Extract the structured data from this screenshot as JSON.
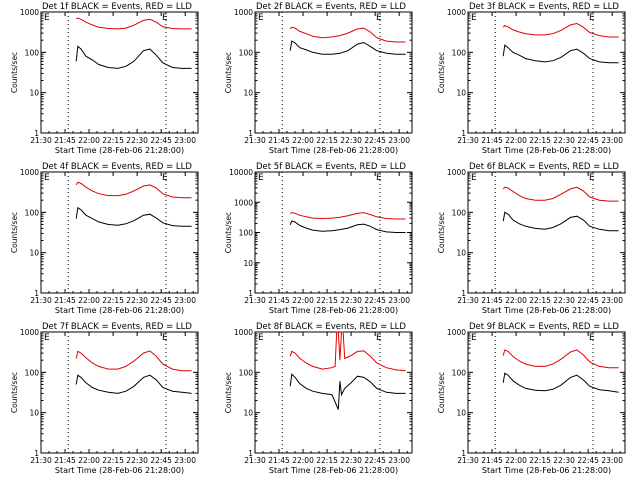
{
  "figure": {
    "start_time_label": "Start Time (28-Feb-06 21:28:00)",
    "y_axis_label": "Counts/sec",
    "event_marker_text": "E",
    "colors": {
      "events": "#000000",
      "lld": "#e00000",
      "axes": "#000000",
      "background": "#ffffff"
    }
  },
  "chart_data": [
    {
      "type": "line",
      "title": "Det 1f BLACK = Events, RED = LLD",
      "x_ticks": [
        "21:30",
        "21:45",
        "22:00",
        "22:15",
        "22:30",
        "22:45",
        "23:00"
      ],
      "y_ticks": [
        "1",
        "10",
        "100",
        "1000"
      ],
      "yscale": "log",
      "ylim": [
        1,
        1000
      ],
      "xlim": [
        "21:30",
        "23:08"
      ],
      "event_lines": [
        "21:47",
        "22:48"
      ],
      "series": [
        {
          "name": "Events",
          "color": "#000000",
          "x": [
            "21:52",
            "21:53",
            "21:55",
            "21:58",
            "22:02",
            "22:06",
            "22:12",
            "22:18",
            "22:23",
            "22:28",
            "22:34",
            "22:38",
            "22:42",
            "22:46",
            "22:52",
            "22:58",
            "23:04"
          ],
          "y": [
            60,
            140,
            120,
            80,
            65,
            50,
            42,
            40,
            45,
            60,
            110,
            120,
            85,
            55,
            42,
            40,
            40
          ]
        },
        {
          "name": "LLD",
          "color": "#e00000",
          "x": [
            "21:52",
            "21:53",
            "21:55",
            "21:58",
            "22:02",
            "22:06",
            "22:12",
            "22:18",
            "22:23",
            "22:28",
            "22:34",
            "22:38",
            "22:42",
            "22:46",
            "22:52",
            "22:58",
            "23:04"
          ],
          "y": [
            680,
            700,
            660,
            560,
            480,
            420,
            390,
            380,
            400,
            470,
            620,
            660,
            560,
            430,
            390,
            380,
            380
          ]
        }
      ]
    },
    {
      "type": "line",
      "title": "Det 2f BLACK = Events, RED = LLD",
      "x_ticks": [
        "21:30",
        "21:45",
        "22:00",
        "22:15",
        "22:30",
        "22:45",
        "23:00"
      ],
      "y_ticks": [
        "1",
        "10",
        "100",
        "1000"
      ],
      "yscale": "log",
      "ylim": [
        1,
        1000
      ],
      "xlim": [
        "21:30",
        "23:08"
      ],
      "event_lines": [
        "21:47",
        "22:48"
      ],
      "series": [
        {
          "name": "Events",
          "color": "#000000",
          "x": [
            "21:52",
            "21:53",
            "21:55",
            "21:58",
            "22:02",
            "22:06",
            "22:12",
            "22:18",
            "22:23",
            "22:28",
            "22:34",
            "22:38",
            "22:42",
            "22:46",
            "22:52",
            "22:58",
            "23:04"
          ],
          "y": [
            110,
            190,
            170,
            130,
            115,
            100,
            90,
            90,
            95,
            110,
            160,
            175,
            140,
            110,
            95,
            90,
            90
          ]
        },
        {
          "name": "LLD",
          "color": "#e00000",
          "x": [
            "21:52",
            "21:53",
            "21:55",
            "21:58",
            "22:02",
            "22:06",
            "22:12",
            "22:18",
            "22:23",
            "22:28",
            "22:34",
            "22:38",
            "22:42",
            "22:46",
            "22:52",
            "22:58",
            "23:04"
          ],
          "y": [
            380,
            420,
            400,
            330,
            290,
            250,
            230,
            240,
            260,
            300,
            380,
            400,
            320,
            230,
            190,
            180,
            180
          ]
        }
      ]
    },
    {
      "type": "line",
      "title": "Det 3f BLACK = Events, RED = LLD",
      "x_ticks": [
        "21:30",
        "21:45",
        "22:00",
        "22:15",
        "22:30",
        "22:45",
        "23:00"
      ],
      "y_ticks": [
        "1",
        "10",
        "100",
        "1000"
      ],
      "yscale": "log",
      "ylim": [
        1,
        1000
      ],
      "xlim": [
        "21:30",
        "23:08"
      ],
      "event_lines": [
        "21:47",
        "22:48"
      ],
      "series": [
        {
          "name": "Events",
          "color": "#000000",
          "x": [
            "21:52",
            "21:53",
            "21:55",
            "21:58",
            "22:02",
            "22:06",
            "22:12",
            "22:18",
            "22:23",
            "22:28",
            "22:34",
            "22:38",
            "22:42",
            "22:46",
            "22:52",
            "22:58",
            "23:04"
          ],
          "y": [
            80,
            150,
            130,
            100,
            85,
            70,
            62,
            58,
            62,
            75,
            110,
            120,
            95,
            70,
            58,
            55,
            55
          ]
        },
        {
          "name": "LLD",
          "color": "#e00000",
          "x": [
            "21:52",
            "21:53",
            "21:55",
            "21:58",
            "22:02",
            "22:06",
            "22:12",
            "22:18",
            "22:23",
            "22:28",
            "22:34",
            "22:38",
            "22:42",
            "22:46",
            "22:52",
            "22:58",
            "23:04"
          ],
          "y": [
            420,
            460,
            430,
            360,
            320,
            290,
            270,
            270,
            290,
            350,
            480,
            520,
            420,
            310,
            260,
            240,
            240
          ]
        }
      ]
    },
    {
      "type": "line",
      "title": "Det 4f BLACK = Events, RED = LLD",
      "x_ticks": [
        "21:30",
        "21:45",
        "22:00",
        "22:15",
        "22:30",
        "22:45",
        "23:00"
      ],
      "y_ticks": [
        "1",
        "10",
        "100",
        "1000"
      ],
      "yscale": "log",
      "ylim": [
        1,
        1000
      ],
      "xlim": [
        "21:30",
        "23:08"
      ],
      "event_lines": [
        "21:47",
        "22:48"
      ],
      "series": [
        {
          "name": "Events",
          "color": "#000000",
          "x": [
            "21:52",
            "21:53",
            "21:55",
            "21:58",
            "22:02",
            "22:06",
            "22:12",
            "22:18",
            "22:23",
            "22:28",
            "22:34",
            "22:38",
            "22:42",
            "22:46",
            "22:52",
            "22:58",
            "23:04"
          ],
          "y": [
            70,
            130,
            115,
            85,
            70,
            58,
            50,
            48,
            52,
            62,
            85,
            90,
            72,
            55,
            47,
            45,
            45
          ]
        },
        {
          "name": "LLD",
          "color": "#e00000",
          "x": [
            "21:52",
            "21:53",
            "21:55",
            "21:58",
            "22:02",
            "22:06",
            "22:12",
            "22:18",
            "22:23",
            "22:28",
            "22:34",
            "22:38",
            "22:42",
            "22:46",
            "22:52",
            "22:58",
            "23:04"
          ],
          "y": [
            480,
            560,
            520,
            420,
            340,
            290,
            260,
            260,
            280,
            340,
            450,
            480,
            400,
            290,
            240,
            230,
            230
          ]
        }
      ]
    },
    {
      "type": "line",
      "title": "Det 5f BLACK = Events, RED = LLD",
      "x_ticks": [
        "21:30",
        "21:45",
        "22:00",
        "22:15",
        "22:30",
        "22:45",
        "23:00"
      ],
      "y_ticks": [
        "1",
        "10",
        "100",
        "1000",
        "10000"
      ],
      "yscale": "log",
      "ylim": [
        1,
        10000
      ],
      "xlim": [
        "21:30",
        "23:08"
      ],
      "event_lines": [
        "21:47",
        "22:48"
      ],
      "series": [
        {
          "name": "Events",
          "color": "#000000",
          "x": [
            "21:52",
            "21:53",
            "21:55",
            "21:58",
            "22:02",
            "22:06",
            "22:12",
            "22:18",
            "22:23",
            "22:28",
            "22:34",
            "22:38",
            "22:42",
            "22:46",
            "22:52",
            "22:58",
            "23:04"
          ],
          "y": [
            180,
            240,
            220,
            170,
            140,
            120,
            110,
            115,
            125,
            140,
            180,
            190,
            160,
            125,
            105,
            100,
            100
          ]
        },
        {
          "name": "LLD",
          "color": "#e00000",
          "x": [
            "21:52",
            "21:53",
            "21:55",
            "21:58",
            "22:02",
            "22:06",
            "22:12",
            "22:18",
            "22:23",
            "22:28",
            "22:34",
            "22:38",
            "22:42",
            "22:46",
            "22:52",
            "22:58",
            "23:04"
          ],
          "y": [
            420,
            460,
            430,
            370,
            330,
            300,
            290,
            300,
            320,
            360,
            430,
            450,
            390,
            330,
            290,
            280,
            280
          ]
        }
      ]
    },
    {
      "type": "line",
      "title": "Det 6f BLACK = Events, RED = LLD",
      "x_ticks": [
        "21:30",
        "21:45",
        "22:00",
        "22:15",
        "22:30",
        "22:45",
        "23:00"
      ],
      "y_ticks": [
        "1",
        "10",
        "100",
        "1000"
      ],
      "yscale": "log",
      "ylim": [
        1,
        1000
      ],
      "xlim": [
        "21:30",
        "23:08"
      ],
      "event_lines": [
        "21:47",
        "22:48"
      ],
      "series": [
        {
          "name": "Events",
          "color": "#000000",
          "x": [
            "21:52",
            "21:53",
            "21:55",
            "21:58",
            "22:02",
            "22:06",
            "22:12",
            "22:18",
            "22:23",
            "22:28",
            "22:34",
            "22:38",
            "22:42",
            "22:46",
            "22:52",
            "22:58",
            "23:04"
          ],
          "y": [
            60,
            100,
            90,
            65,
            52,
            45,
            40,
            38,
            42,
            52,
            75,
            80,
            65,
            45,
            38,
            35,
            35
          ]
        },
        {
          "name": "LLD",
          "color": "#e00000",
          "x": [
            "21:52",
            "21:53",
            "21:55",
            "21:58",
            "22:02",
            "22:06",
            "22:12",
            "22:18",
            "22:23",
            "22:28",
            "22:34",
            "22:38",
            "22:42",
            "22:46",
            "22:52",
            "22:58",
            "23:04"
          ],
          "y": [
            380,
            420,
            400,
            330,
            260,
            220,
            200,
            200,
            220,
            280,
            380,
            420,
            340,
            240,
            200,
            190,
            190
          ]
        }
      ]
    },
    {
      "type": "line",
      "title": "Det 7f BLACK = Events, RED = LLD",
      "x_ticks": [
        "21:30",
        "21:45",
        "22:00",
        "22:15",
        "22:30",
        "22:45",
        "23:00"
      ],
      "y_ticks": [
        "1",
        "10",
        "100",
        "1000"
      ],
      "yscale": "log",
      "ylim": [
        1,
        1000
      ],
      "xlim": [
        "21:30",
        "23:08"
      ],
      "event_lines": [
        "21:47",
        "22:48"
      ],
      "series": [
        {
          "name": "Events",
          "color": "#000000",
          "x": [
            "21:52",
            "21:53",
            "21:55",
            "21:58",
            "22:02",
            "22:06",
            "22:12",
            "22:18",
            "22:23",
            "22:28",
            "22:34",
            "22:38",
            "22:42",
            "22:46",
            "22:52",
            "22:58",
            "23:04"
          ],
          "y": [
            50,
            85,
            75,
            55,
            42,
            36,
            32,
            30,
            34,
            45,
            75,
            85,
            65,
            42,
            34,
            32,
            30
          ]
        },
        {
          "name": "LLD",
          "color": "#e00000",
          "x": [
            "21:52",
            "21:53",
            "21:55",
            "21:58",
            "22:02",
            "22:06",
            "22:12",
            "22:18",
            "22:23",
            "22:28",
            "22:34",
            "22:38",
            "22:42",
            "22:46",
            "22:52",
            "22:58",
            "23:04"
          ],
          "y": [
            220,
            330,
            300,
            230,
            170,
            140,
            120,
            120,
            140,
            190,
            300,
            340,
            250,
            160,
            120,
            110,
            110
          ]
        }
      ]
    },
    {
      "type": "line",
      "title": "Det 8f BLACK = Events, RED = LLD",
      "x_ticks": [
        "21:30",
        "21:45",
        "22:00",
        "22:15",
        "22:30",
        "22:45",
        "23:00"
      ],
      "y_ticks": [
        "1",
        "10",
        "100",
        "1000"
      ],
      "yscale": "log",
      "ylim": [
        1,
        1000
      ],
      "xlim": [
        "21:30",
        "23:08"
      ],
      "event_lines": [
        "21:47",
        "22:48"
      ],
      "series": [
        {
          "name": "Events",
          "color": "#000000",
          "x": [
            "21:52",
            "21:53",
            "21:55",
            "21:58",
            "22:02",
            "22:06",
            "22:12",
            "22:18",
            "22:22",
            "22:23",
            "22:24",
            "22:26",
            "22:30",
            "22:34",
            "22:38",
            "22:42",
            "22:46",
            "22:52",
            "22:58",
            "23:04"
          ],
          "y": [
            45,
            90,
            75,
            52,
            40,
            34,
            30,
            28,
            12,
            60,
            28,
            40,
            55,
            80,
            75,
            58,
            40,
            32,
            30,
            30
          ]
        },
        {
          "name": "LLD",
          "color": "#e00000",
          "x": [
            "21:52",
            "21:53",
            "21:55",
            "21:58",
            "22:02",
            "22:06",
            "22:12",
            "22:18",
            "22:20",
            "22:21",
            "22:22",
            "22:23",
            "22:24",
            "22:25",
            "22:26",
            "22:28",
            "22:30",
            "22:34",
            "22:38",
            "22:42",
            "22:46",
            "22:52",
            "22:58",
            "23:04"
          ],
          "y": [
            250,
            330,
            300,
            220,
            170,
            140,
            120,
            130,
            140,
            1000,
            1000,
            200,
            1000,
            1000,
            220,
            240,
            260,
            330,
            340,
            250,
            170,
            130,
            115,
            110
          ]
        }
      ]
    },
    {
      "type": "line",
      "title": "Det 9f BLACK = Events, RED = LLD",
      "x_ticks": [
        "21:30",
        "21:45",
        "22:00",
        "22:15",
        "22:30",
        "22:45",
        "23:00"
      ],
      "y_ticks": [
        "1",
        "10",
        "100",
        "1000"
      ],
      "yscale": "log",
      "ylim": [
        1,
        1000
      ],
      "xlim": [
        "21:30",
        "23:08"
      ],
      "event_lines": [
        "21:47",
        "22:48"
      ],
      "series": [
        {
          "name": "Events",
          "color": "#000000",
          "x": [
            "21:52",
            "21:53",
            "21:55",
            "21:58",
            "22:02",
            "22:06",
            "22:12",
            "22:18",
            "22:23",
            "22:28",
            "22:34",
            "22:38",
            "22:42",
            "22:46",
            "22:52",
            "22:58",
            "23:04"
          ],
          "y": [
            55,
            95,
            85,
            62,
            48,
            40,
            36,
            35,
            38,
            48,
            75,
            85,
            65,
            45,
            37,
            35,
            32
          ]
        },
        {
          "name": "LLD",
          "color": "#e00000",
          "x": [
            "21:52",
            "21:53",
            "21:55",
            "21:58",
            "22:02",
            "22:06",
            "22:12",
            "22:18",
            "22:23",
            "22:28",
            "22:34",
            "22:38",
            "22:42",
            "22:46",
            "22:52",
            "22:58",
            "23:04"
          ],
          "y": [
            260,
            360,
            330,
            250,
            190,
            160,
            140,
            140,
            160,
            210,
            320,
            360,
            270,
            180,
            140,
            130,
            130
          ]
        }
      ]
    }
  ]
}
